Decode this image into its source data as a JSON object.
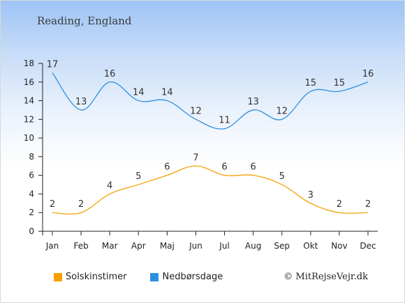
{
  "title": "Reading, England",
  "copyright": "© MitRejseVejr.dk",
  "chart_data": {
    "type": "line",
    "categories": [
      "Jan",
      "Feb",
      "Mar",
      "Apr",
      "Maj",
      "Jun",
      "Jul",
      "Aug",
      "Sep",
      "Okt",
      "Nov",
      "Dec"
    ],
    "ylim": [
      0,
      18
    ],
    "yticks": [
      0,
      2,
      4,
      6,
      8,
      10,
      12,
      14,
      16,
      18
    ],
    "grid": false,
    "legend_position": "bottom-left",
    "series": [
      {
        "name": "Solskinstimer",
        "color": "#f5a000",
        "values": [
          2,
          2,
          4,
          5,
          6,
          7,
          6,
          6,
          5,
          3,
          2,
          2
        ]
      },
      {
        "name": "Nedbørsdage",
        "color": "#2e8fe0",
        "values": [
          17,
          13,
          16,
          14,
          14,
          12,
          11,
          13,
          12,
          15,
          15,
          16
        ]
      }
    ]
  }
}
